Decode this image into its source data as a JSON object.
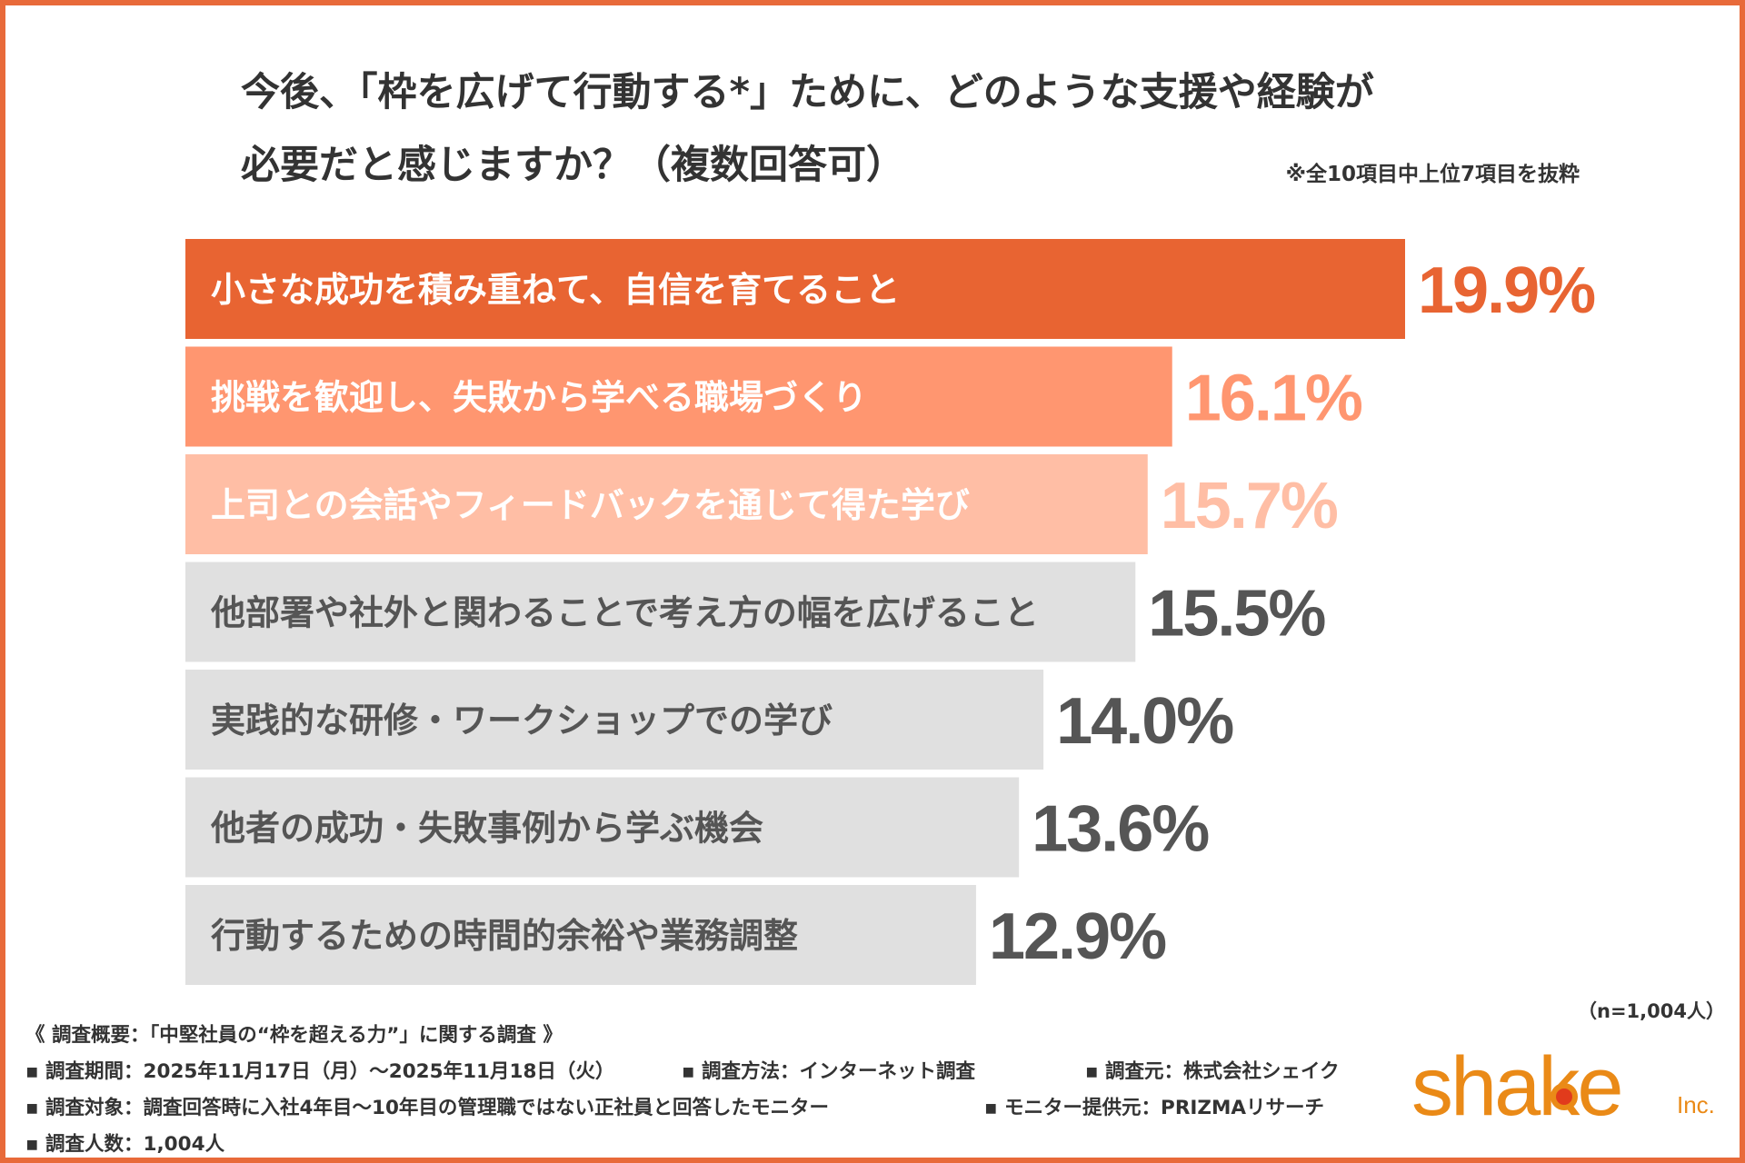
{
  "title": {
    "line1": "今後、「枠を広げて行動する*」ために、どのような支援や経験が",
    "line2": "必要だと感じますか？（複数回答可）"
  },
  "note": "※全10項目中上位7項目を抜粋",
  "chart_data": {
    "type": "bar",
    "orientation": "horizontal",
    "categories": [
      "小さな成功を積み重ねて、自信を育てること",
      "挑戦を歓迎し、失敗から学べる職場づくり",
      "上司との会話やフィードバックを通じて得た学び",
      "他部署や社外と関わることで考え方の幅を広げること",
      "実践的な研修・ワークショップでの学び",
      "他者の成功・失敗事例から学ぶ機会",
      "行動するための時間的余裕や業務調整"
    ],
    "values": [
      19.9,
      16.1,
      15.7,
      15.5,
      14.0,
      13.6,
      12.9
    ],
    "value_labels": [
      "19.9%",
      "16.1%",
      "15.7%",
      "15.5%",
      "14.0%",
      "13.6%",
      "12.9%"
    ],
    "bar_colors": [
      "#e86432",
      "#ff9670",
      "#ffbea5",
      "#e0e0e0",
      "#e0e0e0",
      "#e0e0e0",
      "#e0e0e0"
    ],
    "label_colors": [
      "#ffffff",
      "#ffffff",
      "#ffffff",
      "#555555",
      "#555555",
      "#555555",
      "#555555"
    ],
    "value_colors": [
      "#e86432",
      "#ff9670",
      "#ffbea5",
      "#555555",
      "#555555",
      "#555555",
      "#555555"
    ],
    "unit": "%",
    "grid": false,
    "legend": "none"
  },
  "sample_size": "（n=1,004人）",
  "survey": {
    "heading": "《 調査概要：「中堅社員の“枠を超える力”」に関する調査 》",
    "period": "▪ 調査期間：2025年11月17日（月）〜2025年11月18日（火）",
    "method": "▪ 調査方法：インターネット調査",
    "source": "▪ 調査元：株式会社シェイク",
    "target": "▪ 調査対象：調査回答時に入社4年目〜10年目の管理職ではない正社員と回答したモニター",
    "provider": "▪ モニター提供元：PRIZMAリサーチ",
    "count": "▪ 調査人数：1,004人"
  },
  "logo": {
    "word": "shake",
    "suffix": "Inc."
  },
  "colors": {
    "frame": "#e86a3a",
    "logo": "#ea8a17",
    "logo_dot": "#e13b1c"
  }
}
